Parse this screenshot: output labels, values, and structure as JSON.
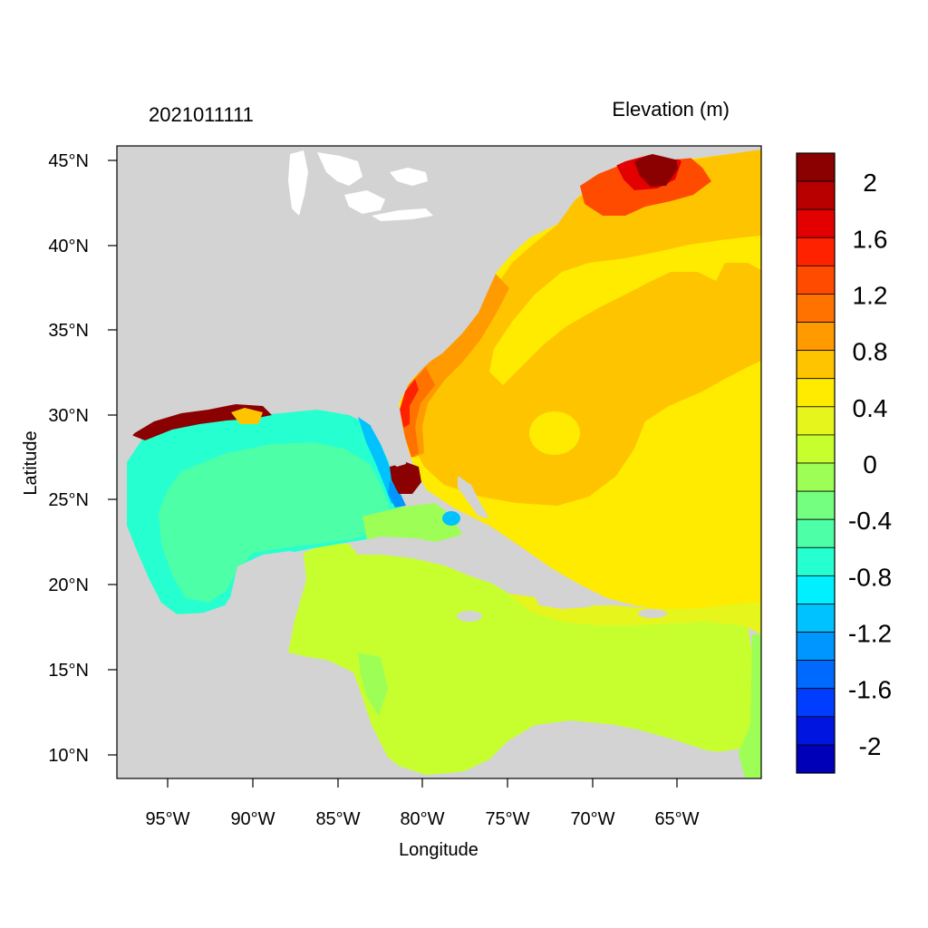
{
  "header": {
    "left_string": "2021011111",
    "right_string": "Elevation (m)"
  },
  "axes": {
    "xlabel": "Longitude",
    "ylabel": "Latitude",
    "x_ticks": [
      "95°W",
      "90°W",
      "85°W",
      "80°W",
      "75°W",
      "70°W",
      "65°W"
    ],
    "y_ticks": [
      "45°N",
      "40°N",
      "35°N",
      "30°N",
      "25°N",
      "20°N",
      "15°N",
      "10°N"
    ]
  },
  "colorbar": {
    "labels": [
      "2",
      "1.6",
      "1.2",
      "0.8",
      "0.4",
      "0",
      "-0.4",
      "-0.8",
      "-1.2",
      "-1.6",
      "-2"
    ],
    "colors_top_to_bottom": [
      "#8b0000",
      "#b80000",
      "#e30000",
      "#ff2200",
      "#ff4b00",
      "#ff7200",
      "#ff9a00",
      "#ffc400",
      "#ffeb00",
      "#e6f51b",
      "#c7ff2e",
      "#9dff55",
      "#74ff80",
      "#4dffa6",
      "#26ffd0",
      "#00f0ff",
      "#00c2ff",
      "#0096ff",
      "#006aff",
      "#003dff",
      "#0016e0",
      "#0000b8"
    ]
  },
  "colors": {
    "land": "#d3d3d3",
    "background": "#ffffff"
  }
}
